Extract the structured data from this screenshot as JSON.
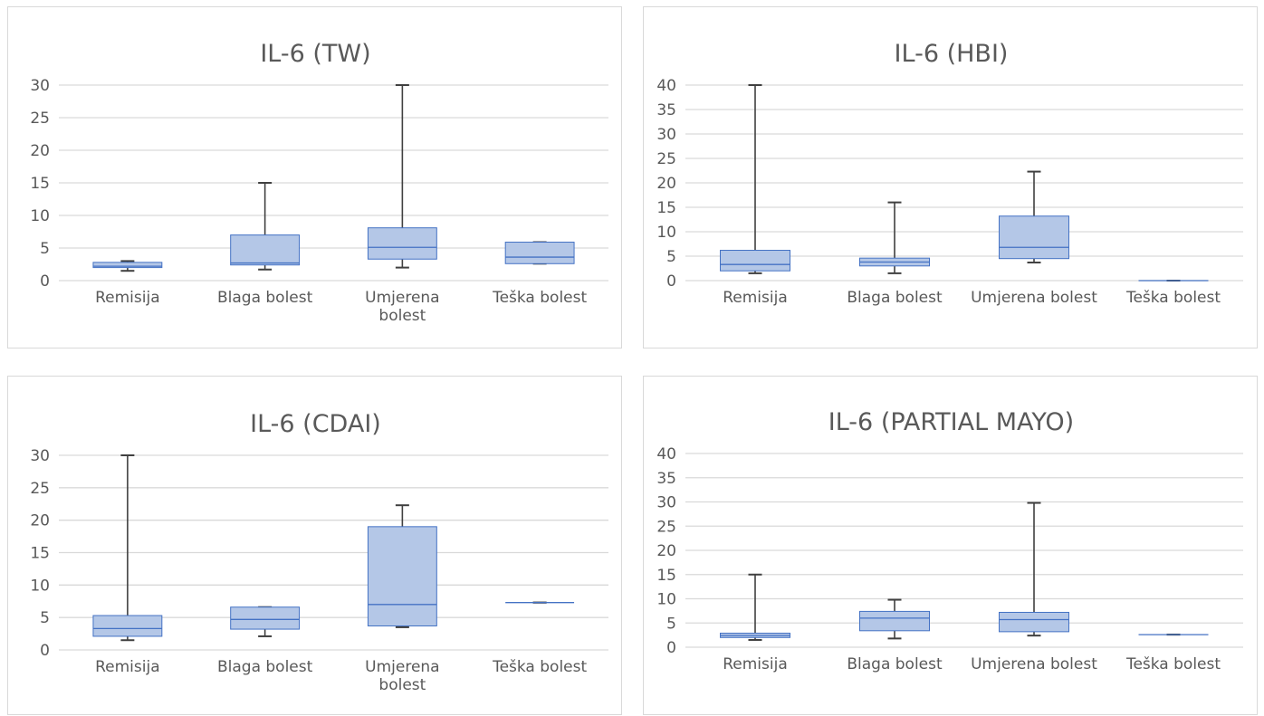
{
  "colors": {
    "box_fill": "#b4c7e7",
    "box_stroke": "#4472c4",
    "whisker": "#404040",
    "grid": "#d9d9d9",
    "text": "#595959"
  },
  "chart_data": [
    {
      "type": "box",
      "title": "IL-6 (TW)",
      "categories": [
        "Remisija",
        "Blaga bolest",
        "Umjerena bolest",
        "Teška bolest"
      ],
      "ylim": [
        0,
        30
      ],
      "yticks": [
        0,
        5,
        10,
        15,
        20,
        25,
        30
      ],
      "grid": true,
      "boxes": [
        {
          "min": 1.5,
          "q1": 2.0,
          "median": 2.2,
          "q3": 2.8,
          "max": 3.0
        },
        {
          "min": 1.7,
          "q1": 2.4,
          "median": 2.7,
          "q3": 7.0,
          "max": 15.0
        },
        {
          "min": 2.0,
          "q1": 3.3,
          "median": 5.1,
          "q3": 8.1,
          "max": 30.0
        },
        {
          "min": 2.6,
          "q1": 2.6,
          "median": 3.6,
          "q3": 5.9,
          "max": 5.9
        }
      ]
    },
    {
      "type": "box",
      "title": "IL-6 (HBI)",
      "categories": [
        "Remisija",
        "Blaga bolest",
        "Umjerena bolest",
        "Teška bolest"
      ],
      "ylim": [
        0,
        40
      ],
      "yticks": [
        0,
        5,
        10,
        15,
        20,
        25,
        30,
        35,
        40
      ],
      "grid": true,
      "boxes": [
        {
          "min": 1.5,
          "q1": 2.0,
          "median": 3.3,
          "q3": 6.2,
          "max": 40.0
        },
        {
          "min": 1.5,
          "q1": 3.0,
          "median": 3.8,
          "q3": 4.6,
          "max": 16.0
        },
        {
          "min": 3.7,
          "q1": 4.5,
          "median": 6.8,
          "q3": 13.2,
          "max": 22.3
        },
        {
          "min": 0.0,
          "q1": 0.0,
          "median": 0.0,
          "q3": 0.0,
          "max": 0.0
        }
      ]
    },
    {
      "type": "box",
      "title": "IL-6 (CDAI)",
      "categories": [
        "Remisija",
        "Blaga bolest",
        "Umjerena bolest",
        "Teška bolest"
      ],
      "ylim": [
        0,
        30
      ],
      "yticks": [
        0,
        5,
        10,
        15,
        20,
        25,
        30
      ],
      "grid": true,
      "boxes": [
        {
          "min": 1.5,
          "q1": 2.1,
          "median": 3.3,
          "q3": 5.3,
          "max": 30.0
        },
        {
          "min": 2.1,
          "q1": 3.2,
          "median": 4.7,
          "q3": 6.6,
          "max": 6.6
        },
        {
          "min": 3.5,
          "q1": 3.7,
          "median": 7.0,
          "q3": 19.0,
          "max": 22.3
        },
        {
          "min": 7.3,
          "q1": 7.3,
          "median": 7.3,
          "q3": 7.3,
          "max": 7.3
        }
      ]
    },
    {
      "type": "box",
      "title": "IL-6 (PARTIAL MAYO)",
      "categories": [
        "Remisija",
        "Blaga bolest",
        "Umjerena bolest",
        "Teška bolest"
      ],
      "ylim": [
        0,
        40
      ],
      "yticks": [
        0,
        5,
        10,
        15,
        20,
        25,
        30,
        35,
        40
      ],
      "grid": true,
      "boxes": [
        {
          "min": 1.5,
          "q1": 2.0,
          "median": 2.4,
          "q3": 2.9,
          "max": 15.0
        },
        {
          "min": 1.8,
          "q1": 3.4,
          "median": 6.0,
          "q3": 7.4,
          "max": 9.8
        },
        {
          "min": 2.4,
          "q1": 3.2,
          "median": 5.7,
          "q3": 7.2,
          "max": 29.8
        },
        {
          "min": 2.6,
          "q1": 2.6,
          "median": 2.6,
          "q3": 2.6,
          "max": 2.6
        }
      ]
    }
  ]
}
